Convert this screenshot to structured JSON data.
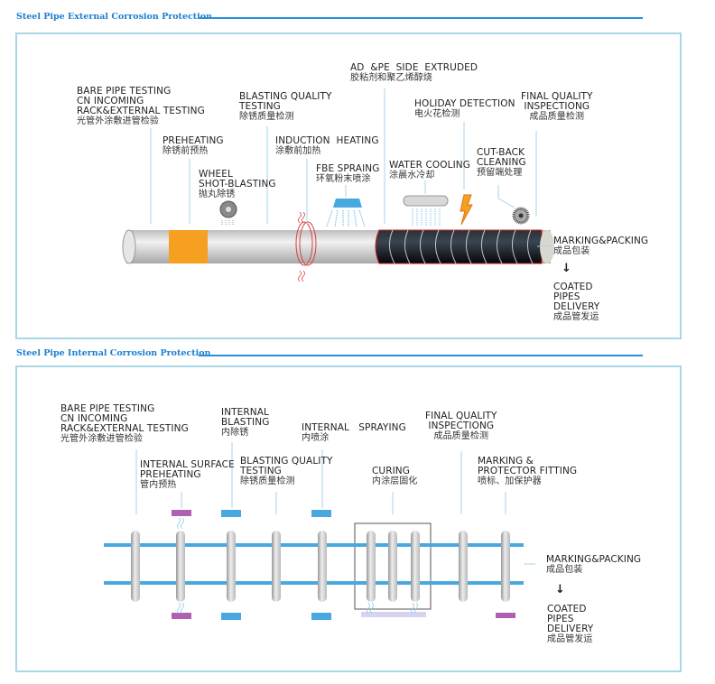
{
  "external": {
    "title": "Steel Pipe External Corrosion Protection",
    "labels": {
      "bare": [
        "BARE PIPE TESTING",
        "CN INCOMING",
        "RACK&EXTERNAL TESTING",
        "光管外涂敷进管检验"
      ],
      "preheat": [
        "PREHEATING",
        "除锈前预热"
      ],
      "wheel": [
        "WHEEL",
        "SHOT-BLASTING",
        "抛丸除锈"
      ],
      "blastq": [
        "BLASTING QUALITY",
        "TESTING",
        "除锈质量检测"
      ],
      "induction": [
        "INDUCTION  HEATING",
        "涂敷前加热"
      ],
      "fbe": [
        "FBE SPRAING",
        "环氧粉末喷涂"
      ],
      "adpe": [
        "AD  &PE  SIDE  EXTRUDED",
        "胶粘剂和聚乙烯醇烧"
      ],
      "water": [
        "WATER COOLING",
        "涂晨水冷却"
      ],
      "holiday": [
        "HOLIDAY DETECTION",
        "电火花检测"
      ],
      "cutback": [
        "CUT-BACK",
        "CLEANING",
        "预留端处理"
      ],
      "final": [
        "FINAL QUALITY",
        "INSPECTIONG",
        "成品质量检测"
      ],
      "marking": [
        "MARKING&PACKING",
        "成品包装"
      ],
      "delivery": [
        "COATED",
        "PIPES",
        "DELIVERY",
        "成品管发运"
      ]
    },
    "arrow": "↓"
  },
  "internal": {
    "title": "Steel Pipe Internal Corrosion Protection",
    "labels": {
      "bare": [
        "BARE PIPE TESTING",
        "CN INCOMING",
        "RACK&EXTERNAL TESTING",
        "光管外涂敷进管检验"
      ],
      "blasting": [
        "INTERNAL",
        "BLASTING",
        "内除锈"
      ],
      "spraying": [
        "INTERNAL   SPRAYING",
        "内喷涂"
      ],
      "final": [
        "FINAL QUALITY",
        "INSPECTIONG",
        "成品质量检测"
      ],
      "preheat": [
        "INTERNAL SURFACE",
        "PREHEATING",
        "管内预热"
      ],
      "blastq": [
        "BLASTING QUALITY",
        "TESTING",
        "除锈质量检测"
      ],
      "curing": [
        "CURING",
        "内涂层固化"
      ],
      "marking_fit": [
        "MARKING &",
        "PROTECTOR FITTING",
        "喷标、加保护器"
      ],
      "marking": [
        "MARKING&PACKING",
        "成品包装"
      ],
      "delivery": [
        "COATED",
        "PIPES",
        "DELIVERY",
        "成品管发运"
      ]
    },
    "arrow": "↓"
  },
  "colors": {
    "accent": "#1a7fd0",
    "frame": "#a8d6e6",
    "rail": "#4aa8e0",
    "heater": "#b060b0",
    "orange": "#f5a020",
    "coating": "#111820"
  }
}
